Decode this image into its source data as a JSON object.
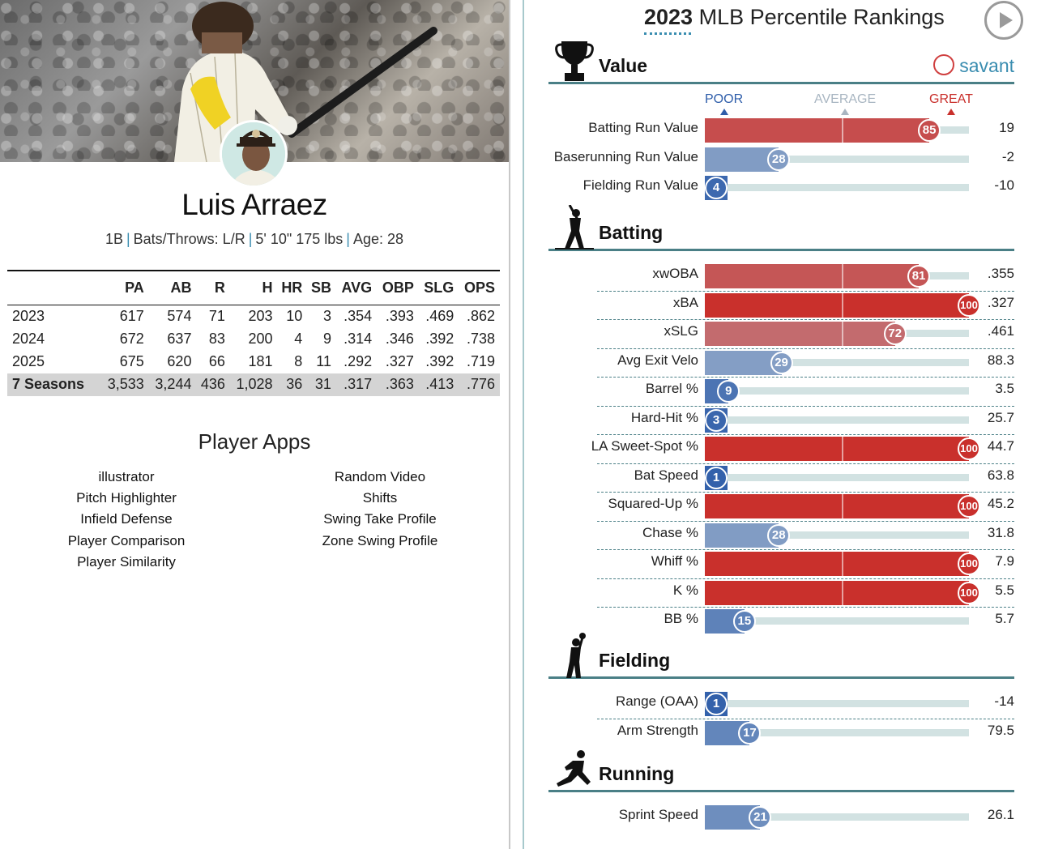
{
  "player": {
    "name": "Luis Arraez",
    "position": "1B",
    "bats_throws": "Bats/Throws: L/R",
    "size": "5' 10\" 175 lbs",
    "age": "Age: 28"
  },
  "stats": {
    "headers": [
      "",
      "PA",
      "AB",
      "R",
      "H",
      "HR",
      "SB",
      "AVG",
      "OBP",
      "SLG",
      "OPS"
    ],
    "rows": [
      [
        "2023",
        "617",
        "574",
        "71",
        "203",
        "10",
        "3",
        ".354",
        ".393",
        ".469",
        ".862"
      ],
      [
        "2024",
        "672",
        "637",
        "83",
        "200",
        "4",
        "9",
        ".314",
        ".346",
        ".392",
        ".738"
      ],
      [
        "2025",
        "675",
        "620",
        "66",
        "181",
        "8",
        "11",
        ".292",
        ".327",
        ".392",
        ".719"
      ]
    ],
    "total": [
      "7 Seasons",
      "3,533",
      "3,244",
      "436",
      "1,028",
      "36",
      "31",
      ".317",
      ".363",
      ".413",
      ".776"
    ]
  },
  "apps": {
    "title": "Player Apps",
    "col1": [
      "illustrator",
      "Pitch Highlighter",
      "Infield Defense",
      "Player Comparison",
      "Player Similarity"
    ],
    "col2": [
      "Random Video",
      "Shifts",
      "Swing Take Profile",
      "Zone Swing Profile"
    ]
  },
  "rankings": {
    "year": "2023",
    "title_rest": " MLB Percentile Rankings",
    "savant": "savant",
    "legend": {
      "poor": "POOR",
      "average": "AVERAGE",
      "great": "GREAT"
    },
    "colors": {
      "poor": "#2f5eaa",
      "great": "#c9302c",
      "average": "#b9c7d6"
    },
    "sections": [
      {
        "title": "Value",
        "icon": "trophy-icon",
        "metrics": [
          {
            "label": "Batting Run Value",
            "pct": 85,
            "value": "19"
          },
          {
            "label": "Baserunning Run Value",
            "pct": 28,
            "value": "-2"
          },
          {
            "label": "Fielding Run Value",
            "pct": 4,
            "value": "-10"
          }
        ]
      },
      {
        "title": "Batting",
        "icon": "batter-icon",
        "metrics": [
          {
            "label": "xwOBA",
            "pct": 81,
            "value": ".355"
          },
          {
            "label": "xBA",
            "pct": 100,
            "value": ".327"
          },
          {
            "label": "xSLG",
            "pct": 72,
            "value": ".461"
          },
          {
            "label": "Avg Exit Velo",
            "pct": 29,
            "value": "88.3"
          },
          {
            "label": "Barrel %",
            "pct": 9,
            "value": "3.5"
          },
          {
            "label": "Hard-Hit %",
            "pct": 3,
            "value": "25.7"
          },
          {
            "label": "LA Sweet-Spot %",
            "pct": 100,
            "value": "44.7"
          },
          {
            "label": "Bat Speed",
            "pct": 1,
            "value": "63.8"
          },
          {
            "label": "Squared-Up %",
            "pct": 100,
            "value": "45.2"
          },
          {
            "label": "Chase %",
            "pct": 28,
            "value": "31.8"
          },
          {
            "label": "Whiff %",
            "pct": 100,
            "value": "7.9"
          },
          {
            "label": "K %",
            "pct": 100,
            "value": "5.5"
          },
          {
            "label": "BB %",
            "pct": 15,
            "value": "5.7"
          }
        ]
      },
      {
        "title": "Fielding",
        "icon": "fielder-icon",
        "metrics": [
          {
            "label": "Range (OAA)",
            "pct": 1,
            "value": "-14"
          },
          {
            "label": "Arm Strength",
            "pct": 17,
            "value": "79.5"
          }
        ]
      },
      {
        "title": "Running",
        "icon": "runner-icon",
        "metrics": [
          {
            "label": "Sprint Speed",
            "pct": 21,
            "value": "26.1"
          }
        ]
      }
    ]
  }
}
